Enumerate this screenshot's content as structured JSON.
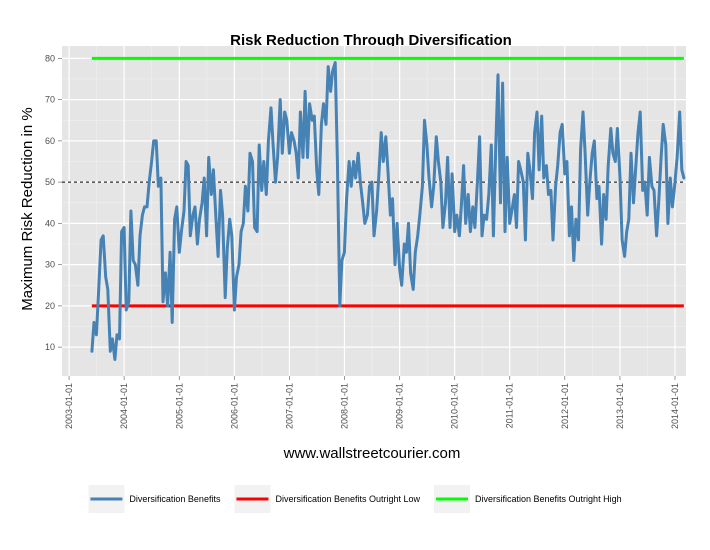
{
  "chart_data": {
    "type": "line",
    "title": "Risk Reduction Through Diversification",
    "xlabel": "www.wallstreetcourier.com",
    "ylabel": "Maximum Risk Reduction in %",
    "ylim": [
      3,
      83
    ],
    "xlim": [
      "2002-11-15",
      "2014-03-15"
    ],
    "y_ticks": [
      10,
      20,
      30,
      40,
      50,
      60,
      70,
      80
    ],
    "x_ticks": [
      "2003-01-01",
      "2004-01-01",
      "2005-01-01",
      "2006-01-01",
      "2007-01-01",
      "2008-01-01",
      "2009-01-01",
      "2010-01-01",
      "2011-01-01",
      "2012-01-01",
      "2013-01-01",
      "2014-01-01"
    ],
    "grid": true,
    "legend_position": "bottom",
    "reference_lines": [
      {
        "name": "Diversification Benefits Outright Low",
        "value": 20,
        "color": "#ff0000",
        "start": "2003-06-01",
        "end": "2014-03-01"
      },
      {
        "name": "Diversification Benefits Outright High",
        "value": 80,
        "color": "#00ff00",
        "start": "2003-06-01",
        "end": "2014-03-01"
      },
      {
        "name": "",
        "value": 50,
        "color": "#000000",
        "dashed": true,
        "start": "2002-11-15",
        "end": "2014-03-15"
      }
    ],
    "series": [
      {
        "name": "Diversification Benefits",
        "color": "#4682b4",
        "points": [
          [
            "2003-06-01",
            9
          ],
          [
            "2003-06-15",
            16
          ],
          [
            "2003-07-01",
            13
          ],
          [
            "2003-07-15",
            23
          ],
          [
            "2003-08-01",
            36
          ],
          [
            "2003-08-15",
            37
          ],
          [
            "2003-09-01",
            27
          ],
          [
            "2003-09-15",
            24
          ],
          [
            "2003-10-01",
            9
          ],
          [
            "2003-10-15",
            12
          ],
          [
            "2003-11-01",
            7
          ],
          [
            "2003-11-15",
            13
          ],
          [
            "2003-12-01",
            12
          ],
          [
            "2003-12-15",
            38
          ],
          [
            "2004-01-01",
            39
          ],
          [
            "2004-01-15",
            19
          ],
          [
            "2004-02-01",
            21
          ],
          [
            "2004-02-15",
            43
          ],
          [
            "2004-03-01",
            31
          ],
          [
            "2004-03-15",
            30
          ],
          [
            "2004-04-01",
            25
          ],
          [
            "2004-04-15",
            37
          ],
          [
            "2004-05-01",
            42
          ],
          [
            "2004-05-15",
            44
          ],
          [
            "2004-06-01",
            44
          ],
          [
            "2004-06-15",
            50
          ],
          [
            "2004-07-01",
            55
          ],
          [
            "2004-07-15",
            60
          ],
          [
            "2004-08-01",
            60
          ],
          [
            "2004-08-15",
            49
          ],
          [
            "2004-09-01",
            51
          ],
          [
            "2004-09-15",
            21
          ],
          [
            "2004-10-01",
            28
          ],
          [
            "2004-10-15",
            20
          ],
          [
            "2004-11-01",
            33
          ],
          [
            "2004-11-15",
            16
          ],
          [
            "2004-12-01",
            41
          ],
          [
            "2004-12-15",
            44
          ],
          [
            "2005-01-01",
            33
          ],
          [
            "2005-01-15",
            38
          ],
          [
            "2005-02-01",
            43
          ],
          [
            "2005-02-15",
            55
          ],
          [
            "2005-03-01",
            54
          ],
          [
            "2005-03-15",
            37
          ],
          [
            "2005-04-01",
            42
          ],
          [
            "2005-04-15",
            44
          ],
          [
            "2005-05-01",
            35
          ],
          [
            "2005-05-15",
            41
          ],
          [
            "2005-06-01",
            45
          ],
          [
            "2005-06-15",
            51
          ],
          [
            "2005-07-01",
            37
          ],
          [
            "2005-07-15",
            56
          ],
          [
            "2005-08-01",
            47
          ],
          [
            "2005-08-15",
            53
          ],
          [
            "2005-09-01",
            41
          ],
          [
            "2005-09-15",
            32
          ],
          [
            "2005-10-01",
            48
          ],
          [
            "2005-10-15",
            42
          ],
          [
            "2005-11-01",
            22
          ],
          [
            "2005-11-15",
            34
          ],
          [
            "2005-12-01",
            41
          ],
          [
            "2005-12-15",
            37
          ],
          [
            "2006-01-01",
            19
          ],
          [
            "2006-01-15",
            27
          ],
          [
            "2006-02-01",
            30
          ],
          [
            "2006-02-15",
            38
          ],
          [
            "2006-03-01",
            40
          ],
          [
            "2006-03-15",
            49
          ],
          [
            "2006-04-01",
            43
          ],
          [
            "2006-04-15",
            57
          ],
          [
            "2006-05-01",
            55
          ],
          [
            "2006-05-15",
            39
          ],
          [
            "2006-06-01",
            38
          ],
          [
            "2006-06-15",
            59
          ],
          [
            "2006-07-01",
            48
          ],
          [
            "2006-07-15",
            55
          ],
          [
            "2006-08-01",
            47
          ],
          [
            "2006-08-15",
            60
          ],
          [
            "2006-09-01",
            68
          ],
          [
            "2006-09-15",
            59
          ],
          [
            "2006-10-01",
            50
          ],
          [
            "2006-10-15",
            56
          ],
          [
            "2006-11-01",
            70
          ],
          [
            "2006-11-15",
            57
          ],
          [
            "2006-12-01",
            67
          ],
          [
            "2006-12-15",
            65
          ],
          [
            "2007-01-01",
            57
          ],
          [
            "2007-01-15",
            62
          ],
          [
            "2007-02-01",
            60
          ],
          [
            "2007-02-15",
            57
          ],
          [
            "2007-03-01",
            51
          ],
          [
            "2007-03-15",
            67
          ],
          [
            "2007-04-01",
            56
          ],
          [
            "2007-04-15",
            72
          ],
          [
            "2007-05-01",
            56
          ],
          [
            "2007-05-15",
            69
          ],
          [
            "2007-06-01",
            65
          ],
          [
            "2007-06-15",
            66
          ],
          [
            "2007-07-01",
            53
          ],
          [
            "2007-07-15",
            47
          ],
          [
            "2007-08-01",
            64
          ],
          [
            "2007-08-15",
            69
          ],
          [
            "2007-09-01",
            64
          ],
          [
            "2007-09-15",
            78
          ],
          [
            "2007-10-01",
            72
          ],
          [
            "2007-10-15",
            77
          ],
          [
            "2007-11-01",
            79
          ],
          [
            "2007-11-15",
            55
          ],
          [
            "2007-12-01",
            20
          ],
          [
            "2007-12-15",
            31
          ],
          [
            "2008-01-01",
            33
          ],
          [
            "2008-01-15",
            46
          ],
          [
            "2008-02-01",
            55
          ],
          [
            "2008-02-15",
            49
          ],
          [
            "2008-03-01",
            55
          ],
          [
            "2008-03-15",
            51
          ],
          [
            "2008-04-01",
            57
          ],
          [
            "2008-04-15",
            50
          ],
          [
            "2008-05-01",
            45
          ],
          [
            "2008-05-15",
            40
          ],
          [
            "2008-06-01",
            42
          ],
          [
            "2008-06-15",
            49
          ],
          [
            "2008-07-01",
            50
          ],
          [
            "2008-07-15",
            37
          ],
          [
            "2008-08-01",
            43
          ],
          [
            "2008-08-15",
            51
          ],
          [
            "2008-09-01",
            62
          ],
          [
            "2008-09-15",
            55
          ],
          [
            "2008-10-01",
            61
          ],
          [
            "2008-10-15",
            53
          ],
          [
            "2008-11-01",
            42
          ],
          [
            "2008-11-15",
            46
          ],
          [
            "2008-12-01",
            30
          ],
          [
            "2008-12-15",
            40
          ],
          [
            "2009-01-01",
            29
          ],
          [
            "2009-01-15",
            25
          ],
          [
            "2009-02-01",
            35
          ],
          [
            "2009-02-15",
            33
          ],
          [
            "2009-03-01",
            40
          ],
          [
            "2009-03-15",
            28
          ],
          [
            "2009-04-01",
            24
          ],
          [
            "2009-04-15",
            33
          ],
          [
            "2009-05-01",
            37
          ],
          [
            "2009-05-15",
            42
          ],
          [
            "2009-06-01",
            49
          ],
          [
            "2009-06-15",
            65
          ],
          [
            "2009-07-01",
            59
          ],
          [
            "2009-07-15",
            51
          ],
          [
            "2009-08-01",
            44
          ],
          [
            "2009-08-15",
            49
          ],
          [
            "2009-09-01",
            61
          ],
          [
            "2009-09-15",
            55
          ],
          [
            "2009-10-01",
            50
          ],
          [
            "2009-10-15",
            39
          ],
          [
            "2009-11-01",
            45
          ],
          [
            "2009-11-15",
            56
          ],
          [
            "2009-12-01",
            39
          ],
          [
            "2009-12-15",
            52
          ],
          [
            "2010-01-01",
            38
          ],
          [
            "2010-01-15",
            42
          ],
          [
            "2010-02-01",
            37
          ],
          [
            "2010-02-15",
            45
          ],
          [
            "2010-03-01",
            54
          ],
          [
            "2010-03-15",
            40
          ],
          [
            "2010-04-01",
            47
          ],
          [
            "2010-04-15",
            38
          ],
          [
            "2010-05-01",
            44
          ],
          [
            "2010-05-15",
            39
          ],
          [
            "2010-06-01",
            50
          ],
          [
            "2010-06-15",
            61
          ],
          [
            "2010-07-01",
            37
          ],
          [
            "2010-07-15",
            42
          ],
          [
            "2010-08-01",
            41
          ],
          [
            "2010-08-15",
            47
          ],
          [
            "2010-09-01",
            59
          ],
          [
            "2010-09-15",
            37
          ],
          [
            "2010-10-01",
            59
          ],
          [
            "2010-10-15",
            76
          ],
          [
            "2010-11-01",
            45
          ],
          [
            "2010-11-15",
            74
          ],
          [
            "2010-12-01",
            38
          ],
          [
            "2010-12-15",
            56
          ],
          [
            "2011-01-01",
            40
          ],
          [
            "2011-01-15",
            43
          ],
          [
            "2011-02-01",
            47
          ],
          [
            "2011-02-15",
            39
          ],
          [
            "2011-03-01",
            55
          ],
          [
            "2011-03-15",
            53
          ],
          [
            "2011-04-01",
            50
          ],
          [
            "2011-04-15",
            36
          ],
          [
            "2011-05-01",
            57
          ],
          [
            "2011-05-15",
            53
          ],
          [
            "2011-06-01",
            46
          ],
          [
            "2011-06-15",
            62
          ],
          [
            "2011-07-01",
            67
          ],
          [
            "2011-07-15",
            53
          ],
          [
            "2011-08-01",
            66
          ],
          [
            "2011-08-15",
            51
          ],
          [
            "2011-09-01",
            54
          ],
          [
            "2011-09-15",
            47
          ],
          [
            "2011-10-01",
            48
          ],
          [
            "2011-10-15",
            36
          ],
          [
            "2011-11-01",
            49
          ],
          [
            "2011-11-15",
            54
          ],
          [
            "2011-12-01",
            62
          ],
          [
            "2011-12-15",
            64
          ],
          [
            "2012-01-01",
            52
          ],
          [
            "2012-01-15",
            55
          ],
          [
            "2012-02-01",
            37
          ],
          [
            "2012-02-15",
            44
          ],
          [
            "2012-03-01",
            31
          ],
          [
            "2012-03-15",
            41
          ],
          [
            "2012-04-01",
            36
          ],
          [
            "2012-04-15",
            58
          ],
          [
            "2012-05-01",
            67
          ],
          [
            "2012-05-15",
            57
          ],
          [
            "2012-06-01",
            42
          ],
          [
            "2012-06-15",
            50
          ],
          [
            "2012-07-01",
            57
          ],
          [
            "2012-07-15",
            60
          ],
          [
            "2012-08-01",
            46
          ],
          [
            "2012-08-15",
            49
          ],
          [
            "2012-09-01",
            35
          ],
          [
            "2012-09-15",
            47
          ],
          [
            "2012-10-01",
            41
          ],
          [
            "2012-10-15",
            54
          ],
          [
            "2012-11-01",
            63
          ],
          [
            "2012-11-15",
            57
          ],
          [
            "2012-12-01",
            55
          ],
          [
            "2012-12-15",
            63
          ],
          [
            "2013-01-01",
            51
          ],
          [
            "2013-01-15",
            36
          ],
          [
            "2013-02-01",
            32
          ],
          [
            "2013-02-15",
            38
          ],
          [
            "2013-03-01",
            41
          ],
          [
            "2013-03-15",
            57
          ],
          [
            "2013-04-01",
            45
          ],
          [
            "2013-04-15",
            53
          ],
          [
            "2013-05-01",
            62
          ],
          [
            "2013-05-15",
            67
          ],
          [
            "2013-06-01",
            48
          ],
          [
            "2013-06-15",
            50
          ],
          [
            "2013-07-01",
            42
          ],
          [
            "2013-07-15",
            56
          ],
          [
            "2013-08-01",
            49
          ],
          [
            "2013-08-15",
            48
          ],
          [
            "2013-09-01",
            37
          ],
          [
            "2013-09-15",
            45
          ],
          [
            "2013-10-01",
            56
          ],
          [
            "2013-10-15",
            64
          ],
          [
            "2013-11-01",
            59
          ],
          [
            "2013-11-15",
            40
          ],
          [
            "2013-12-01",
            51
          ],
          [
            "2013-12-15",
            44
          ],
          [
            "2014-01-01",
            50
          ],
          [
            "2014-01-15",
            56
          ],
          [
            "2014-02-01",
            67
          ],
          [
            "2014-02-15",
            53
          ],
          [
            "2014-03-01",
            51
          ]
        ]
      }
    ],
    "legend": [
      {
        "label": "Diversification Benefits",
        "color": "#4682b4"
      },
      {
        "label": "Diversification Benefits Outright Low",
        "color": "#ff0000"
      },
      {
        "label": "Diversification Benefits Outright High",
        "color": "#00ff00"
      }
    ]
  }
}
